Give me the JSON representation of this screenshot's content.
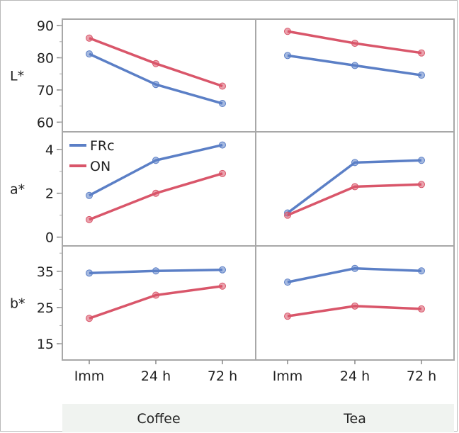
{
  "chart_data": {
    "type": "line",
    "categories": [
      "Imm",
      "24 h",
      "72 h"
    ],
    "panel_groups": [
      "Coffee",
      "Tea"
    ],
    "legend": {
      "placement": "top-left of a* Coffee panel",
      "entries": [
        "FRc",
        "ON"
      ]
    },
    "colors": {
      "FRc": "#5b7fc6",
      "ON": "#d9566a"
    },
    "rows": [
      {
        "label": "L*",
        "ylim": [
          57,
          92
        ],
        "ticks": [
          60,
          70,
          80,
          90
        ],
        "panels": [
          {
            "group": "Coffee",
            "series": [
              {
                "name": "FRc",
                "values": [
                  81.2,
                  71.7,
                  65.8
                ]
              },
              {
                "name": "ON",
                "values": [
                  86.1,
                  78.2,
                  71.2
                ]
              }
            ]
          },
          {
            "group": "Tea",
            "series": [
              {
                "name": "FRc",
                "values": [
                  80.7,
                  77.6,
                  74.6
                ]
              },
              {
                "name": "ON",
                "values": [
                  88.2,
                  84.5,
                  81.5
                ]
              }
            ]
          }
        ]
      },
      {
        "label": "a*",
        "ylim": [
          -0.4,
          4.8
        ],
        "ticks": [
          0,
          2,
          4
        ],
        "panels": [
          {
            "group": "Coffee",
            "series": [
              {
                "name": "FRc",
                "values": [
                  1.9,
                  3.5,
                  4.2
                ]
              },
              {
                "name": "ON",
                "values": [
                  0.8,
                  2.0,
                  2.9
                ]
              }
            ]
          },
          {
            "group": "Tea",
            "series": [
              {
                "name": "FRc",
                "values": [
                  1.1,
                  3.4,
                  3.5
                ]
              },
              {
                "name": "ON",
                "values": [
                  1.0,
                  2.3,
                  2.4
                ]
              }
            ]
          }
        ]
      },
      {
        "label": "b*",
        "ylim": [
          10.5,
          42
        ],
        "ticks": [
          15,
          25,
          35
        ],
        "panels": [
          {
            "group": "Coffee",
            "series": [
              {
                "name": "FRc",
                "values": [
                  34.5,
                  35.1,
                  35.4
                ]
              },
              {
                "name": "ON",
                "values": [
                  22.0,
                  28.4,
                  30.9
                ]
              }
            ]
          },
          {
            "group": "Tea",
            "series": [
              {
                "name": "FRc",
                "values": [
                  32.0,
                  35.8,
                  35.1
                ]
              },
              {
                "name": "ON",
                "values": [
                  22.6,
                  25.4,
                  24.6
                ]
              }
            ]
          }
        ]
      }
    ]
  }
}
